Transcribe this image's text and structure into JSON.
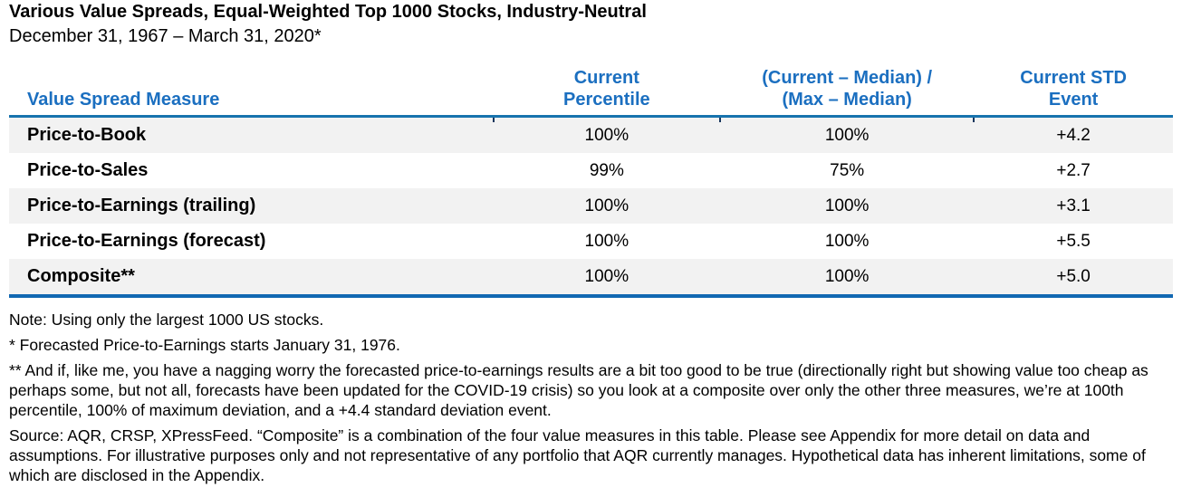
{
  "page": {
    "title": "Various Value Spreads, Equal-Weighted Top 1000 Stocks, Industry-Neutral",
    "subtitle": "December 31, 1967 – March 31, 2020*"
  },
  "table": {
    "headers": {
      "measure": "Value Spread Measure",
      "percentile": "Current\nPercentile",
      "deviation": "(Current – Median) /\n(Max – Median)",
      "std_event": "Current STD\nEvent"
    },
    "rows": [
      {
        "measure": "Price-to-Book",
        "percentile": "100%",
        "deviation": "100%",
        "std_event": "+4.2"
      },
      {
        "measure": "Price-to-Sales",
        "percentile": "99%",
        "deviation": "75%",
        "std_event": "+2.7"
      },
      {
        "measure": "Price-to-Earnings (trailing)",
        "percentile": "100%",
        "deviation": "100%",
        "std_event": "+3.1"
      },
      {
        "measure": "Price-to-Earnings (forecast)",
        "percentile": "100%",
        "deviation": "100%",
        "std_event": "+5.5"
      },
      {
        "measure": "Composite**",
        "percentile": "100%",
        "deviation": "100%",
        "std_event": "+5.0"
      }
    ]
  },
  "footnotes": {
    "note": "Note: Using only the largest 1000 US stocks.",
    "asterisk": "* Forecasted Price-to-Earnings starts January 31, 1976.",
    "double_asterisk": "** And if, like me, you have a nagging worry the forecasted price-to-earnings results are a bit too good to be true (directionally right but showing value too cheap as perhaps some, but not all, forecasts have been updated for the COVID-19 crisis) so you look at a composite over only the other three measures, we’re at 100th percentile, 100% of maximum deviation, and a +4.4 standard deviation event.",
    "source": "Source: AQR, CRSP, XPressFeed. “Composite” is a combination of the four value measures in this table. Please see Appendix for more detail on data and assumptions. For illustrative purposes only and not representative of any portfolio that AQR currently manages. Hypothetical data has inherent limitations, some of which are disclosed in the Appendix."
  },
  "colors": {
    "accent_blue_text": "#1b6fc0",
    "header_rule_blue": "#1773ae",
    "bottom_rule_blue": "#1268b2",
    "row_stripe_gray": "#f2f2f2",
    "text_black": "#000000"
  },
  "chart_data": {
    "type": "table",
    "title": "Various Value Spreads, Equal-Weighted Top 1000 Stocks, Industry-Neutral",
    "subtitle": "December 31, 1967 – March 31, 2020*",
    "columns": [
      "Value Spread Measure",
      "Current Percentile",
      "(Current – Median) / (Max – Median)",
      "Current STD Event"
    ],
    "rows": [
      [
        "Price-to-Book",
        "100%",
        "100%",
        "+4.2"
      ],
      [
        "Price-to-Sales",
        "99%",
        "75%",
        "+2.7"
      ],
      [
        "Price-to-Earnings (trailing)",
        "100%",
        "100%",
        "+3.1"
      ],
      [
        "Price-to-Earnings (forecast)",
        "100%",
        "100%",
        "+5.5"
      ],
      [
        "Composite**",
        "100%",
        "100%",
        "+5.0"
      ]
    ]
  }
}
